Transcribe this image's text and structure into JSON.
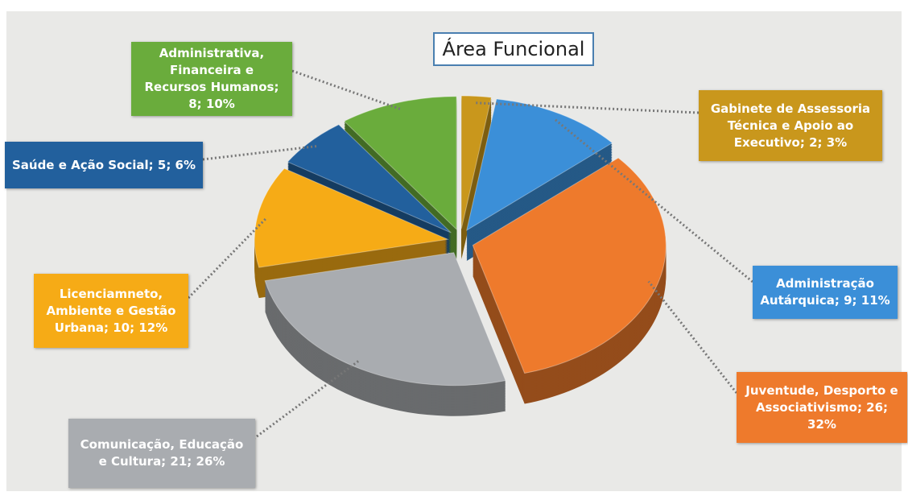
{
  "chart_data": {
    "type": "pie",
    "title": "Área Funcional",
    "labels": [
      "Gabinete de Assessoria Técnica e Apoio ao Executivo; 2; 3%",
      "Administração Autárquica; 9; 11%",
      "Juventude, Desporto e Associativismo; 26; 32%",
      "Comunicação, Educação e Cultura; 21; 26%",
      "Licenciamneto, Ambiente e Gestão Urbana; 10; 12%",
      "Saúde e Ação Social; 5; 6%",
      "Administrativa, Financeira e Recursos Humanos; 8; 10%"
    ],
    "values": [
      2,
      9,
      26,
      21,
      10,
      5,
      8
    ],
    "percentages": [
      3,
      11,
      32,
      26,
      12,
      6,
      10
    ],
    "colors": [
      "#c9971c",
      "#3b8fd8",
      "#ee7a2c",
      "#a9acb0",
      "#f6ab16",
      "#22609d",
      "#6aac3c"
    ]
  }
}
